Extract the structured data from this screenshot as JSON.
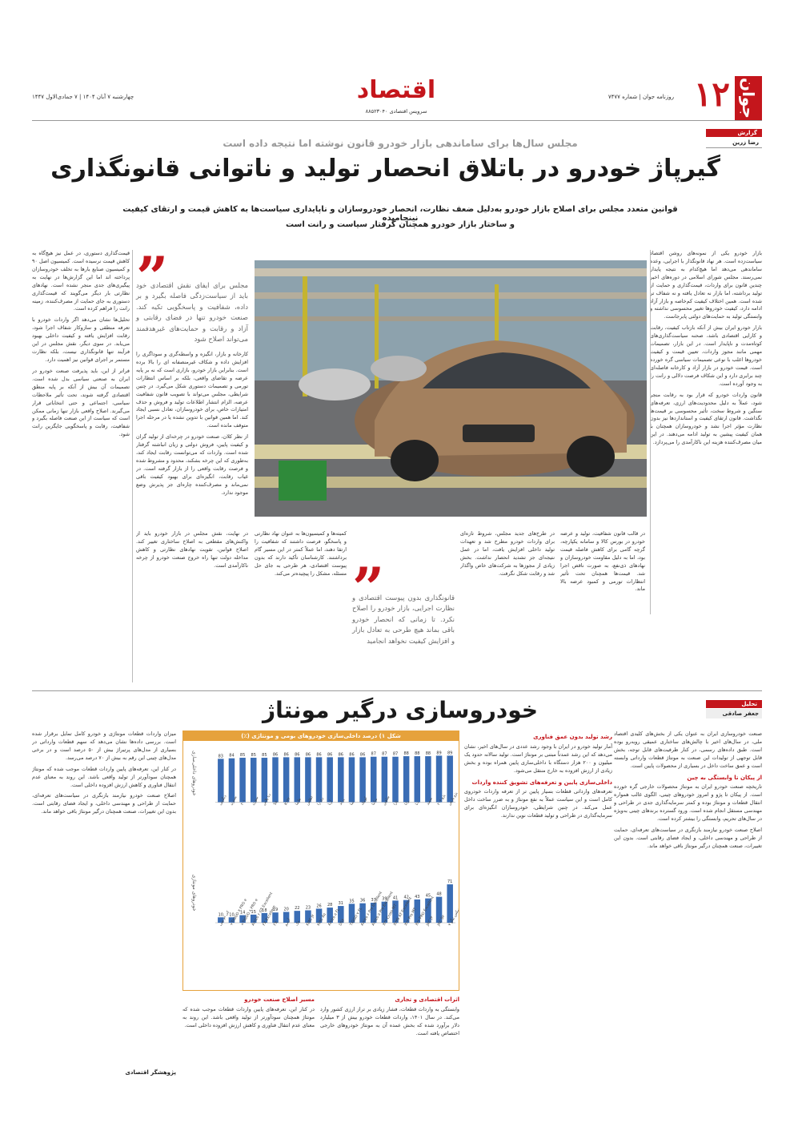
{
  "masthead": {
    "logo": "جوان",
    "page_number": "۱۲",
    "paper_info": "روزنامه جوان | شماره ۷۴۷۷",
    "date_info": "چهارشنبه ۷ آبان ۱۴۰۴ | ۷ جمادی‌الاول ۱۴۴۷",
    "section_title": "اقتصاد",
    "section_sub": "سرویس اقتصادی ۸۸۵۲۳۰۴۰"
  },
  "author_tag": {
    "label": "گزارش",
    "name": "رضا زرین"
  },
  "article1": {
    "kicker": "مجلس سال‌ها برای ساماندهی بازار خودرو قانون نوشته اما نتیجه داده است",
    "title": "گیرپاژ خودرو در باتلاق انحصار تولید و ناتوانی قانونگذاری",
    "lead_1": "قوانین متعدد مجلس برای اصلاح بازار خودرو به‌دلیل ضعف نظارت، انحصار خودروسازان و ناپایداری سیاست‌ها به کاهش قیمت و ارتقای کیفیت نینجامیده",
    "lead_2": "و ساختار بازار خودرو همچنان گرفتار سیاست و رانت است",
    "quote_1": "مجلس برای ایفای نقش اقتصادی خود باید از سیاست‌زدگی فاصله بگیرد و بر داده، شفافیت و پاسخگویی تکیه کند. صنعت خودرو تنها در فضای رقابتی و آزاد و رقابت و حمایت‌های غیرهدفمند می‌تواند اصلاح شود",
    "quote_2": "قانونگذاری بدون پیوست اقتصادی و نظارت اجرایی، بازار خودرو را اصلاح نکرد. تا زمانی که انحصار خودرو باقی بماند هیچ طرحی به تعادل بازار و افزایش کیفیت نخواهد انجامید",
    "col_r_1": "بازار خودرو یکی از نمونه‌های روشن اقتصاد سیاست‌زده است. هر نهاد قانونگذار با اجرایی، وعده ساماندهی می‌دهد اما هیچ‌کدام به نتیجه پایدار نمی‌رسند. مجلس شورای اسلامی در دوره‌های اخیر چندین قانون برای واردات، قیمت‌گذاری و حمایت از تولید برداشته، اما بازار نه تعادل یافته و نه شفاف تر شده است. همین اختلاف کیفیت کم‌خاصه و بازار آزاد ادامه دارد، کیفیت خودروها تغییر محسوسی نداشته و وابستگی تولید به حمایت‌های دولتی پابرجاست.",
    "col_r_2": "بازار خودرو ایران بیش از آنکه بازتاب کیفیت، رقابت و کارایی اقتصادی باشد، صحنه سیاست‌گذاری‌های کوتاه‌مدت و ناپایدار است. در این بازار، تصمیمات مهمی مانند مجوز واردات، تعیین قیمت و کیفیت خودروها اغلب با نوعی تصمیمات سیاسی گره خورده است. قیمت خودرو در بازار آزاد و کارخانه فاصله‌ای چند برابری دارد و این شکاف فرصت دلالی و رانت را به وجود آورده است.",
    "col_r_3": "قانون واردات خودرو که قرار بود به رقابت منجر شود، عملاً به دلیل محدودیت‌های ارزی، تعرفه‌های سنگین و شروط سخت، تأثیر محسوسی بر قیمت‌ها نگذاشت. قانون ارتقای کیفیت و استانداردها نیز بدون نظارت مؤثر اجرا نشد و خودروسازان همچنان با همان کیفیت پیشین به تولید ادامه می‌دهند. در این میان مصرف‌کننده هزینه این ناکارآمدی را می‌پردازد.",
    "col_ml_1": "کارخانه و بازار، انگیزه و واسطه‌گری و سوداگری را افزایش داده و شکاف غیرمنصفانه ای را بالا برده است. بنابراین بازار خودرو، بازاری است که نه بر پایه عرضه و تقاضای واقعی، بلکه بر اساس انتظارات تورمی و تصمیمات دستوری شکل می‌گیرد. در چنین شرایطی، مجلس می‌تواند با تصویب قانون شفافیت عرضه، الزام انتشار اطلاعات تولید و فروش و حذف امتیازات خاص، برای خودروسازان، تعادل نسبی ایجاد کند. اما همین قوانین با تدوین نشده یا در مرحله اجرا متوقف مانده است.",
    "col_ml_2": "از نظر کلان، صنعت خودرو در چرخه‌ای از تولید گران و کیفیت پایین، فروش دولتی و زیان انباشته گرفتار شده است. واردات که می‌توانست رقابت ایجاد کند، به‌طوری که این چرخه بشکند، محدود و مشروط شده و فرصت رقابت واقعی را از بازار گرفته است. در غیاب رقابت، انگیزه‌ای برای بهبود کیفیت باقی نمی‌ماند و مصرف‌کننده چاره‌ای جز پذیرش وضع موجود ندارد.",
    "col_l_1": "قیمت‌گذاری دستوری، در عمل نیز هیچ‌گاه به کاهش قیمت نرسیده است. کمیسیون اصل ۹۰ و کمیسیون صنایع بارها به تخلف خودروسازان پرداخته اند اما این گزارش‌ها در نهایت به پیگیری‌های جدی منجر نشده است. نهادهای نظارتی بار دیگر می‌گویند که قیمت‌گذاری دستوری به جای حمایت از مصرف‌کننده، زمینه رانت را فراهم کرده است.",
    "col_l_2": "تحلیل‌ها نشان می‌دهد اگر واردات خودرو با تعرفه منطقی و سازوکار شفاف اجرا شود، رقابت افزایش یافته و کیفیت داخلی بهبود می‌یابد. در سوی دیگر، نقش مجلس در این فرآیند تنها قانونگذاری نیست، بلکه نظارت مستمر بر اجرای قوانین نیز اهمیت دارد.",
    "col_l_3": "فراتر از این، باید پذیرفت صنعت خودرو در ایران به صنعتی سیاسی بدل شده است. تصمیمات آن بیش از آنکه بر پایه منطق اقتصادی گرفته شوند، تحت تأثیر ملاحظات سیاسی، اجتماعی و حتی انتخاباتی قرار می‌گیرند. اصلاح واقعی بازار تنها زمانی ممکن است که سیاست از این صنعت فاصله بگیرد و شفافیت، رقابت و پاسخگویی جایگزین رانت شود.",
    "col_b_1": "در قالب قانون شفافیت، تولید و عرضه خودرو در بورس کالا و سامانه یکپارچه، گرچه گامی برای کاهش فاصله قیمت بود، اما به دلیل مقاومت خودروسازان و نهادهای ذی‌نفع، به صورت ناقص اجرا شد. قیمت‌ها همچنان تحت تأثیر انتظارات تورمی و کمبود عرضه بالا ماند.",
    "col_b_2": "در طرح‌های جدید مجلس، شروط تازه‌ای برای واردات خودرو مطرح شد و تعهدات تولید داخلی افزایش یافت، اما در عمل نتیجه‌ای جز تشدید انحصار نداشت. بخش زیادی از مجوزها به شرکت‌های خاص واگذار شد و رقابت شکل نگرفت.",
    "col_b_3": "کمیته‌ها و کمیسیون‌ها به عنوان نهاد نظارتی و پاسخگو، فرصت داشتند که شفافیت را ارتقا دهند، اما عملاً کمتر در این مسیر گام برداشتند. کارشناسان تأکید دارند که بدون پیوست اقتصادی، هر طرحی به جای حل مسئله، مشکل را پیچیده‌تر می‌کند.",
    "col_b_4": "در نهایت، نقش مجلس در بازار خودرو باید از واکنش‌های مقطعی به اصلاح ساختاری تغییر کند. اصلاح قوانین، تقویت نهادهای نظارتی و کاهش مداخله دولت تنها راه خروج صنعت خودرو از چرخه ناکارآمدی است."
  },
  "article2": {
    "tag": "تحلیل",
    "author": "جعفر صادقی",
    "title": "خودروسازی درگیر مونتاژ",
    "sub_1": "رشد تولید بدون عمق فناوری",
    "sub_2": "از پیکان تا وابستگی به چین",
    "sub_3": "داخلی‌سازی پایین و تعرفه‌های تشویق کننده واردات",
    "sub_4": "اثرات اقتصادی و تجاری",
    "sub_5": "مسیر اصلاح صنعت خودرو",
    "byline": "پژوهشگر اقتصادی",
    "text_1": "صنعت خودروسازی ایران به عنوان یکی از بخش‌های کلیدی اقتصاد ملی، در سال‌های اخیر با چالش‌های ساختاری عمیقی روبه‌رو بوده است. طبق داده‌های رسمی، در کنار ظرفیت‌های قابل توجه، بخش قابل توجهی از تولیدات این صنعت به مونتاژ قطعات وارداتی وابسته است و عمق ساخت داخل در بسیاری از محصولات پایین است.",
    "text_2": "تاریخچه صنعت خودرو ایران به مونتاژ محصولات خارجی گره خورده است. از پیکان تا پژو و امروز خودروهای چینی، الگوی غالب همواره انتقال قطعات و مونتاژ بوده و کمتر سرمایه‌گذاری جدی در طراحی و مهندسی مستقل انجام شده است. ورود گسترده برندهای چینی به‌ویژه در سال‌های تحریم، وابستگی را بیشتر کرده است.",
    "text_3": "آمار تولید خودرو در ایران با وجود رشد عددی در سال‌های اخیر، نشان می‌دهد که این رشد عمدتاً مبتنی بر مونتاژ است. تولید سالانه حدود یک میلیون و ۲۰۰ هزار دستگاه با داخلی‌سازی پایین همراه بوده و بخش زیادی از ارزش افزوده به خارج منتقل می‌شود.",
    "text_4": "تعرفه‌های وارداتی قطعات بسیار پایین تر از تعرفه واردات خودروی کامل است و این سیاست عملاً به نفع مونتاژ و به ضرر ساخت داخل عمل می‌کند. در چنین شرایطی، خودروسازان انگیزه‌ای برای سرمایه‌گذاری در طراحی و تولید قطعات نوین ندارند.",
    "text_5": "وابستگی به واردات قطعات، فشار زیادی بر تراز ارزی کشور وارد می‌کند. در سال ۱۴۰۱، واردات قطعات خودرو بیش از ۳ میلیارد دلار برآورد شده که بخش عمده آن به مونتاژ خودروهای خارجی اختصاص یافته است.",
    "text_6": "اصلاح صنعت خودرو نیازمند بازنگری در سیاست‌های تعرفه‌ای، حمایت از طراحی و مهندسی داخلی، و ایجاد فضای رقابتی است. بدون این تغییرات، صنعت همچنان درگیر مونتاژ باقی خواهد ماند.",
    "text_7": "میزان واردات قطعات مونتاژی و خودرو کامل تمایل برقرار شده است. بررسی داده‌ها نشان می‌دهد که سهم قطعات وارداتی در بسیاری از مدل‌های پرتیراژ بیش از ۵۰ درصد است و در برخی مدل‌های چینی این رقم به بیش از ۷۰ درصد می‌رسد.",
    "text_8": "در کنار این، تعرفه‌های پایین واردات قطعات موجب شده که مونتاژ همچنان سودآورتر از تولید واقعی باشد. این روند به معنای عدم انتقال فناوری و کاهش ارزش افزوده داخلی است."
  },
  "chart_data": {
    "type": "bar",
    "title": "شکل ۱) درصد داخلی‌سازی خودروهای بومی و مونتاژی (٪)",
    "panel_top": {
      "ylabel": "خودروهای داخلی‌سازی",
      "categories": [
        "پژو پارس",
        "پژو ۲۰۶",
        "سمند",
        "دنا",
        "رانا",
        "تارا",
        "شاهین",
        "ساینا",
        "کوییک",
        "تیبا",
        "پراید",
        "آریا",
        "ری را",
        "اطلس",
        "هایما",
        "K۱۳۲",
        "S۵",
        "دنا پلاس",
        "سورن",
        "۳۰۱",
        "بسترن",
        "دیگنیتی"
      ],
      "values": [
        89,
        89,
        88,
        88,
        88,
        87,
        87,
        87,
        86,
        86,
        86,
        86,
        86,
        86,
        86,
        86,
        86,
        85,
        85,
        85,
        84,
        83
      ]
    },
    "panel_bottom": {
      "ylabel": "خودروهای مونتاژی",
      "categories": [
        "فونیکس تیگو ۷",
        "JAC S۳",
        "JAC J۴",
        "X۲۲ PRO Excellent",
        "X۲۲ Pro MT",
        "X۳۳S AT Excellent",
        "X۳۳ Cross MT",
        "Arrizo ۵ Pro Excellent",
        "Arrizo ۶ Pro Excellent",
        "TIGGO ۷ FL",
        "DS۷",
        "Arrizo ۵ FL",
        "KMC A۵",
        "KMC J۷",
        "جک",
        "آریزو",
        "FX",
        "FX Excellent",
        "Arrizo ۶ GT Excellent",
        "TIGGO ۸ PRO e+",
        "TIGGO ۷ PRO e+",
        "کی ام سی"
      ],
      "values": [
        71,
        48,
        45,
        43,
        42,
        41,
        39,
        37,
        36,
        35,
        31,
        28,
        26,
        23,
        22,
        20,
        19,
        18,
        15,
        14,
        10,
        10
      ]
    }
  }
}
